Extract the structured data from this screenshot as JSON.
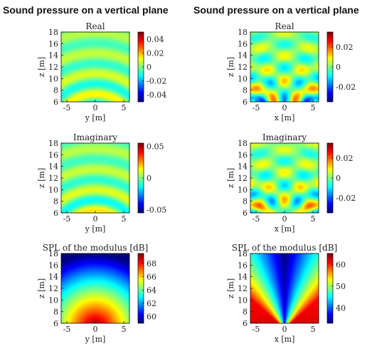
{
  "columns": [
    {
      "title": "Sound pressure on a vertical plane"
    },
    {
      "title": "Sound pressure on a vertical plane"
    }
  ],
  "colors": {
    "frame": "#000000",
    "text": "#222222"
  },
  "chart_data": [
    {
      "type": "heatmap",
      "title": "Real",
      "colormap": "jet",
      "xlabel": "y [m]",
      "ylabel": "z [m]",
      "xlim": [
        -6,
        6
      ],
      "ylim": [
        6,
        18
      ],
      "xticks": [
        -5,
        0,
        5
      ],
      "yticks": [
        6,
        8,
        10,
        12,
        14,
        16,
        18
      ],
      "field": "concentric",
      "cycles": 3.5,
      "phase": 0,
      "clim": [
        -0.05,
        0.05
      ],
      "cticks": [
        0.04,
        0.02,
        0,
        -0.02,
        -0.04
      ],
      "cticklabels": [
        "0.04",
        "0.02",
        "0",
        "-0.02",
        "-0.04"
      ]
    },
    {
      "type": "heatmap",
      "title": "Real",
      "colormap": "jet",
      "xlabel": "x [m]",
      "ylabel": "z [m]",
      "xlim": [
        -6,
        6
      ],
      "ylim": [
        6,
        18
      ],
      "xticks": [
        -5,
        0,
        5
      ],
      "yticks": [
        6,
        8,
        10,
        12,
        14,
        16,
        18
      ],
      "field": "interference",
      "cycles": 3.5,
      "phase": 0,
      "clim": [
        -0.035,
        0.035
      ],
      "cticks": [
        0.02,
        0,
        -0.02
      ],
      "cticklabels": [
        "0.02",
        "0",
        "-0.02"
      ]
    },
    {
      "type": "heatmap",
      "title": "Imaginary",
      "colormap": "jet",
      "xlabel": "y [m]",
      "ylabel": "z [m]",
      "xlim": [
        -6,
        6
      ],
      "ylim": [
        6,
        18
      ],
      "xticks": [
        -5,
        0,
        5
      ],
      "yticks": [
        6,
        8,
        10,
        12,
        14,
        16,
        18
      ],
      "field": "concentric",
      "cycles": 3.5,
      "phase": 1.57,
      "clim": [
        -0.055,
        0.055
      ],
      "cticks": [
        0.05,
        0,
        -0.05
      ],
      "cticklabels": [
        "0.05",
        "0",
        "-0.05"
      ]
    },
    {
      "type": "heatmap",
      "title": "Imaginary",
      "colormap": "jet",
      "xlabel": "x [m]",
      "ylabel": "z [m]",
      "xlim": [
        -6,
        6
      ],
      "ylim": [
        6,
        18
      ],
      "xticks": [
        -5,
        0,
        5
      ],
      "yticks": [
        6,
        8,
        10,
        12,
        14,
        16,
        18
      ],
      "field": "interference",
      "cycles": 3.5,
      "phase": 1.57,
      "clim": [
        -0.035,
        0.035
      ],
      "cticks": [
        0.02,
        0,
        -0.02
      ],
      "cticklabels": [
        "0.02",
        "0",
        "-0.02"
      ]
    },
    {
      "type": "heatmap",
      "title": "SPL of the modulus [dB]",
      "colormap": "jet",
      "xlabel": "y [m]",
      "ylabel": "z [m]",
      "xlim": [
        -6,
        6
      ],
      "ylim": [
        6,
        18
      ],
      "xticks": [
        -5,
        0,
        5
      ],
      "yticks": [
        6,
        8,
        10,
        12,
        14,
        16,
        18
      ],
      "field": "spl_radial",
      "clim": [
        59,
        69.5
      ],
      "cticks": [
        68,
        66,
        64,
        62,
        60
      ],
      "cticklabels": [
        "68",
        "66",
        "64",
        "62",
        "60"
      ]
    },
    {
      "type": "heatmap",
      "title": "SPL of the modulus [dB]",
      "colormap": "jet",
      "xlabel": "x [m]",
      "ylabel": "z [m]",
      "xlim": [
        -6,
        6
      ],
      "ylim": [
        6,
        18
      ],
      "xticks": [
        -5,
        0,
        5
      ],
      "yticks": [
        6,
        8,
        10,
        12,
        14,
        16,
        18
      ],
      "field": "spl_v",
      "clim": [
        33,
        65
      ],
      "cticks": [
        60,
        50,
        40
      ],
      "cticklabels": [
        "60",
        "50",
        "40"
      ]
    }
  ]
}
